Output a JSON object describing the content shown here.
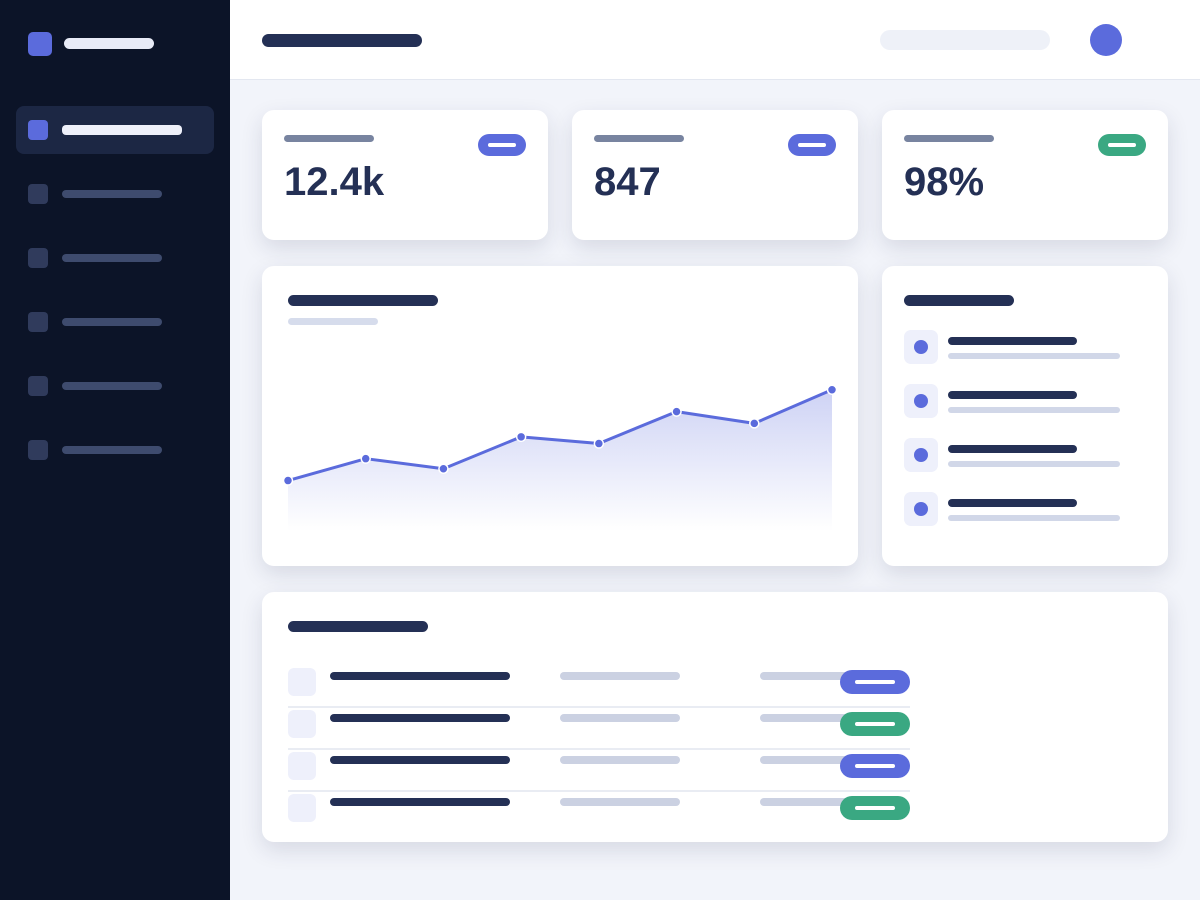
{
  "colors": {
    "sidebar_bg": "#0c1428",
    "accent": "#5b6bdc",
    "success": "#3aa882",
    "text_dark": "#243055",
    "page_bg": "#f2f4fa"
  },
  "sidebar": {
    "items": [
      {
        "icon": "nav-square-icon",
        "active": true
      },
      {
        "icon": "nav-square-icon",
        "active": false
      },
      {
        "icon": "nav-square-icon",
        "active": false
      },
      {
        "icon": "nav-square-icon",
        "active": false
      },
      {
        "icon": "nav-square-icon",
        "active": false
      },
      {
        "icon": "nav-square-icon",
        "active": false
      }
    ]
  },
  "stats": [
    {
      "value": "12.4k",
      "badge_color": "#5b6bdc"
    },
    {
      "value": "847",
      "badge_color": "#5b6bdc"
    },
    {
      "value": "98%",
      "badge_color": "#3aa882"
    }
  ],
  "chart_data": {
    "type": "area",
    "x": [
      1,
      2,
      3,
      4,
      5,
      6,
      7,
      8
    ],
    "series": [
      {
        "values": [
          30,
          43,
          37,
          56,
          52,
          71,
          64,
          84
        ],
        "color": "#5b6bdc"
      }
    ],
    "ylim": [
      0,
      110
    ],
    "grid": false,
    "legend": "none"
  },
  "activity": {
    "items": [
      {
        "icon": "dot-icon"
      },
      {
        "icon": "dot-icon"
      },
      {
        "icon": "dot-icon"
      },
      {
        "icon": "dot-icon"
      }
    ]
  },
  "table": {
    "rows": [
      {
        "status_color": "#5b6bdc"
      },
      {
        "status_color": "#3aa882"
      },
      {
        "status_color": "#5b6bdc"
      },
      {
        "status_color": "#3aa882"
      }
    ]
  }
}
